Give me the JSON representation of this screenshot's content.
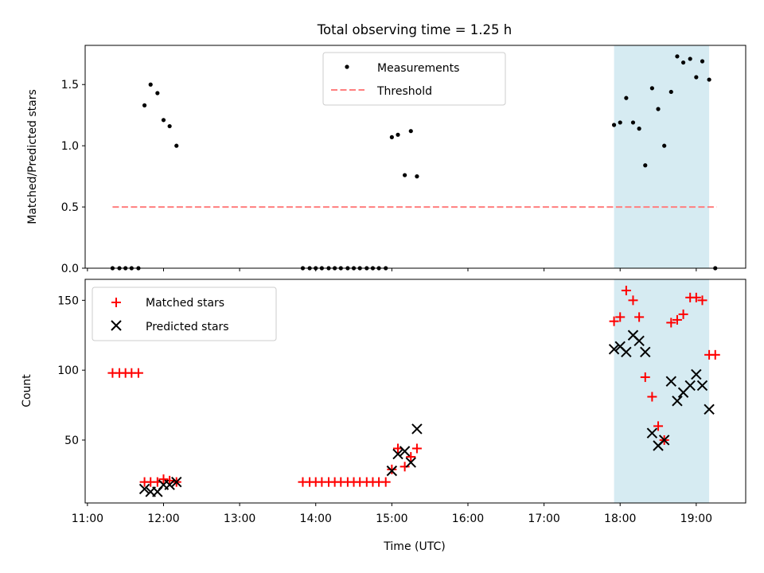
{
  "title": "Total observing time = 1.25 h",
  "colors": {
    "measurement": "#000000",
    "threshold": "#ff7f7f",
    "matched": "#ff0000",
    "predicted": "#000000",
    "highlight": "#add8e6"
  },
  "chart_data": [
    {
      "type": "scatter",
      "ylabel": "Matched/Predicted stars",
      "xlim": [
        10.97,
        19.65
      ],
      "ylim": [
        0,
        1.82
      ],
      "yticks": [
        0.0,
        0.5,
        1.0,
        1.5
      ],
      "ytick_labels": [
        "0.0",
        "0.5",
        "1.0",
        "1.5"
      ],
      "highlight_range": [
        17.92,
        19.17
      ],
      "legend": {
        "position": "upper center",
        "entries": [
          "Measurements",
          "Threshold"
        ]
      },
      "threshold": {
        "name": "Threshold",
        "x": [
          11.33,
          19.27
        ],
        "y": 0.5,
        "style": "dashed"
      },
      "series": [
        {
          "name": "Measurements",
          "marker": "dot",
          "x": [
            11.33,
            11.42,
            11.5,
            11.58,
            11.67,
            11.75,
            11.83,
            11.92,
            12.0,
            12.08,
            12.17,
            13.83,
            13.92,
            14.0,
            14.08,
            14.17,
            14.25,
            14.33,
            14.42,
            14.5,
            14.58,
            14.67,
            14.75,
            14.83,
            14.92,
            15.0,
            15.08,
            15.17,
            15.25,
            15.33,
            17.92,
            18.0,
            18.08,
            18.17,
            18.25,
            18.33,
            18.42,
            18.5,
            18.58,
            18.67,
            18.75,
            18.83,
            18.92,
            19.0,
            19.08,
            19.17,
            19.25
          ],
          "y": [
            0.0,
            0.0,
            0.0,
            0.0,
            0.0,
            1.33,
            1.5,
            1.43,
            1.21,
            1.16,
            1.0,
            0.0,
            0.0,
            0.0,
            0.0,
            0.0,
            0.0,
            0.0,
            0.0,
            0.0,
            0.0,
            0.0,
            0.0,
            0.0,
            0.0,
            1.07,
            1.09,
            0.76,
            1.12,
            0.75,
            1.17,
            1.19,
            1.39,
            1.19,
            1.14,
            0.84,
            1.47,
            1.3,
            1.0,
            1.44,
            1.73,
            1.68,
            1.71,
            1.56,
            1.69,
            1.54,
            0.0
          ]
        }
      ]
    },
    {
      "type": "scatter",
      "xlabel": "Time (UTC)",
      "ylabel": "Count",
      "xlim": [
        10.97,
        19.65
      ],
      "ylim": [
        5,
        165
      ],
      "xticks": [
        11,
        12,
        13,
        14,
        15,
        16,
        17,
        18,
        19
      ],
      "xtick_labels": [
        "11:00",
        "12:00",
        "13:00",
        "14:00",
        "15:00",
        "16:00",
        "17:00",
        "18:00",
        "19:00"
      ],
      "yticks": [
        50,
        100,
        150
      ],
      "ytick_labels": [
        "50",
        "100",
        "150"
      ],
      "highlight_range": [
        17.92,
        19.17
      ],
      "legend": {
        "position": "upper left",
        "entries": [
          "Matched stars",
          "Predicted stars"
        ]
      },
      "series": [
        {
          "name": "Matched stars",
          "marker": "plus",
          "x": [
            11.33,
            11.42,
            11.5,
            11.58,
            11.67,
            11.75,
            11.83,
            11.92,
            12.0,
            12.08,
            12.17,
            13.83,
            13.92,
            14.0,
            14.08,
            14.17,
            14.25,
            14.33,
            14.42,
            14.5,
            14.58,
            14.67,
            14.75,
            14.83,
            14.92,
            15.0,
            15.08,
            15.17,
            15.25,
            15.33,
            17.92,
            18.0,
            18.08,
            18.17,
            18.25,
            18.33,
            18.42,
            18.5,
            18.58,
            18.67,
            18.75,
            18.83,
            18.92,
            19.0,
            19.08,
            19.17,
            19.25
          ],
          "y": [
            98,
            98,
            98,
            98,
            98,
            20,
            20,
            20,
            22,
            21,
            20,
            20,
            20,
            20,
            20,
            20,
            20,
            20,
            20,
            20,
            20,
            20,
            20,
            20,
            20,
            29,
            44,
            31,
            38,
            44,
            135,
            138,
            157,
            150,
            138,
            95,
            81,
            60,
            50,
            134,
            136,
            140,
            152,
            152,
            150,
            111,
            111
          ]
        },
        {
          "name": "Predicted stars",
          "marker": "x",
          "x": [
            11.75,
            11.83,
            11.92,
            12.0,
            12.08,
            12.17,
            15.0,
            15.08,
            15.17,
            15.25,
            15.33,
            17.92,
            18.0,
            18.08,
            18.17,
            18.25,
            18.33,
            18.42,
            18.5,
            18.58,
            18.67,
            18.75,
            18.83,
            18.92,
            19.0,
            19.08,
            19.17
          ],
          "y": [
            15,
            13,
            13,
            18,
            18,
            20,
            28,
            40,
            42,
            34,
            58,
            115,
            117,
            113,
            125,
            121,
            113,
            55,
            46,
            50,
            92,
            78,
            84,
            89,
            97,
            89,
            72
          ]
        }
      ]
    }
  ]
}
